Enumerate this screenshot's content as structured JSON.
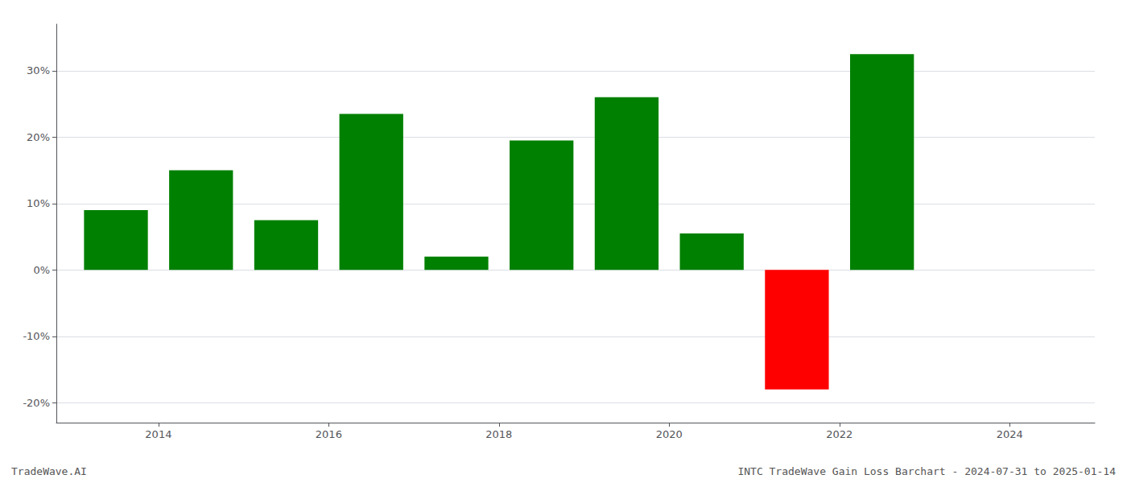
{
  "chart_data": {
    "type": "bar",
    "x": [
      2013.5,
      2014.5,
      2015.5,
      2016.5,
      2017.5,
      2018.5,
      2019.5,
      2020.5,
      2021.5,
      2022.5
    ],
    "values": [
      9.0,
      15.0,
      7.5,
      23.5,
      2.0,
      19.5,
      26.0,
      5.5,
      -18.0,
      32.5
    ],
    "colors": [
      "#008000",
      "#008000",
      "#008000",
      "#008000",
      "#008000",
      "#008000",
      "#008000",
      "#008000",
      "#ff0000",
      "#008000"
    ],
    "xlim": [
      2012.8,
      2025.0
    ],
    "xticks": [
      2014,
      2016,
      2018,
      2020,
      2022,
      2024
    ],
    "ylim": [
      -23,
      37
    ],
    "yticks": [
      {
        "value": -20,
        "label": "-20%"
      },
      {
        "value": -10,
        "label": "-10%"
      },
      {
        "value": 0,
        "label": "0%"
      },
      {
        "value": 10,
        "label": "10%"
      },
      {
        "value": 20,
        "label": "20%"
      },
      {
        "value": 30,
        "label": "30%"
      }
    ],
    "grid": true,
    "annotations": [
      "TradeWave.AI",
      "INTC TradeWave Gain Loss Barchart - 2024-07-31 to 2025-01-14"
    ]
  }
}
